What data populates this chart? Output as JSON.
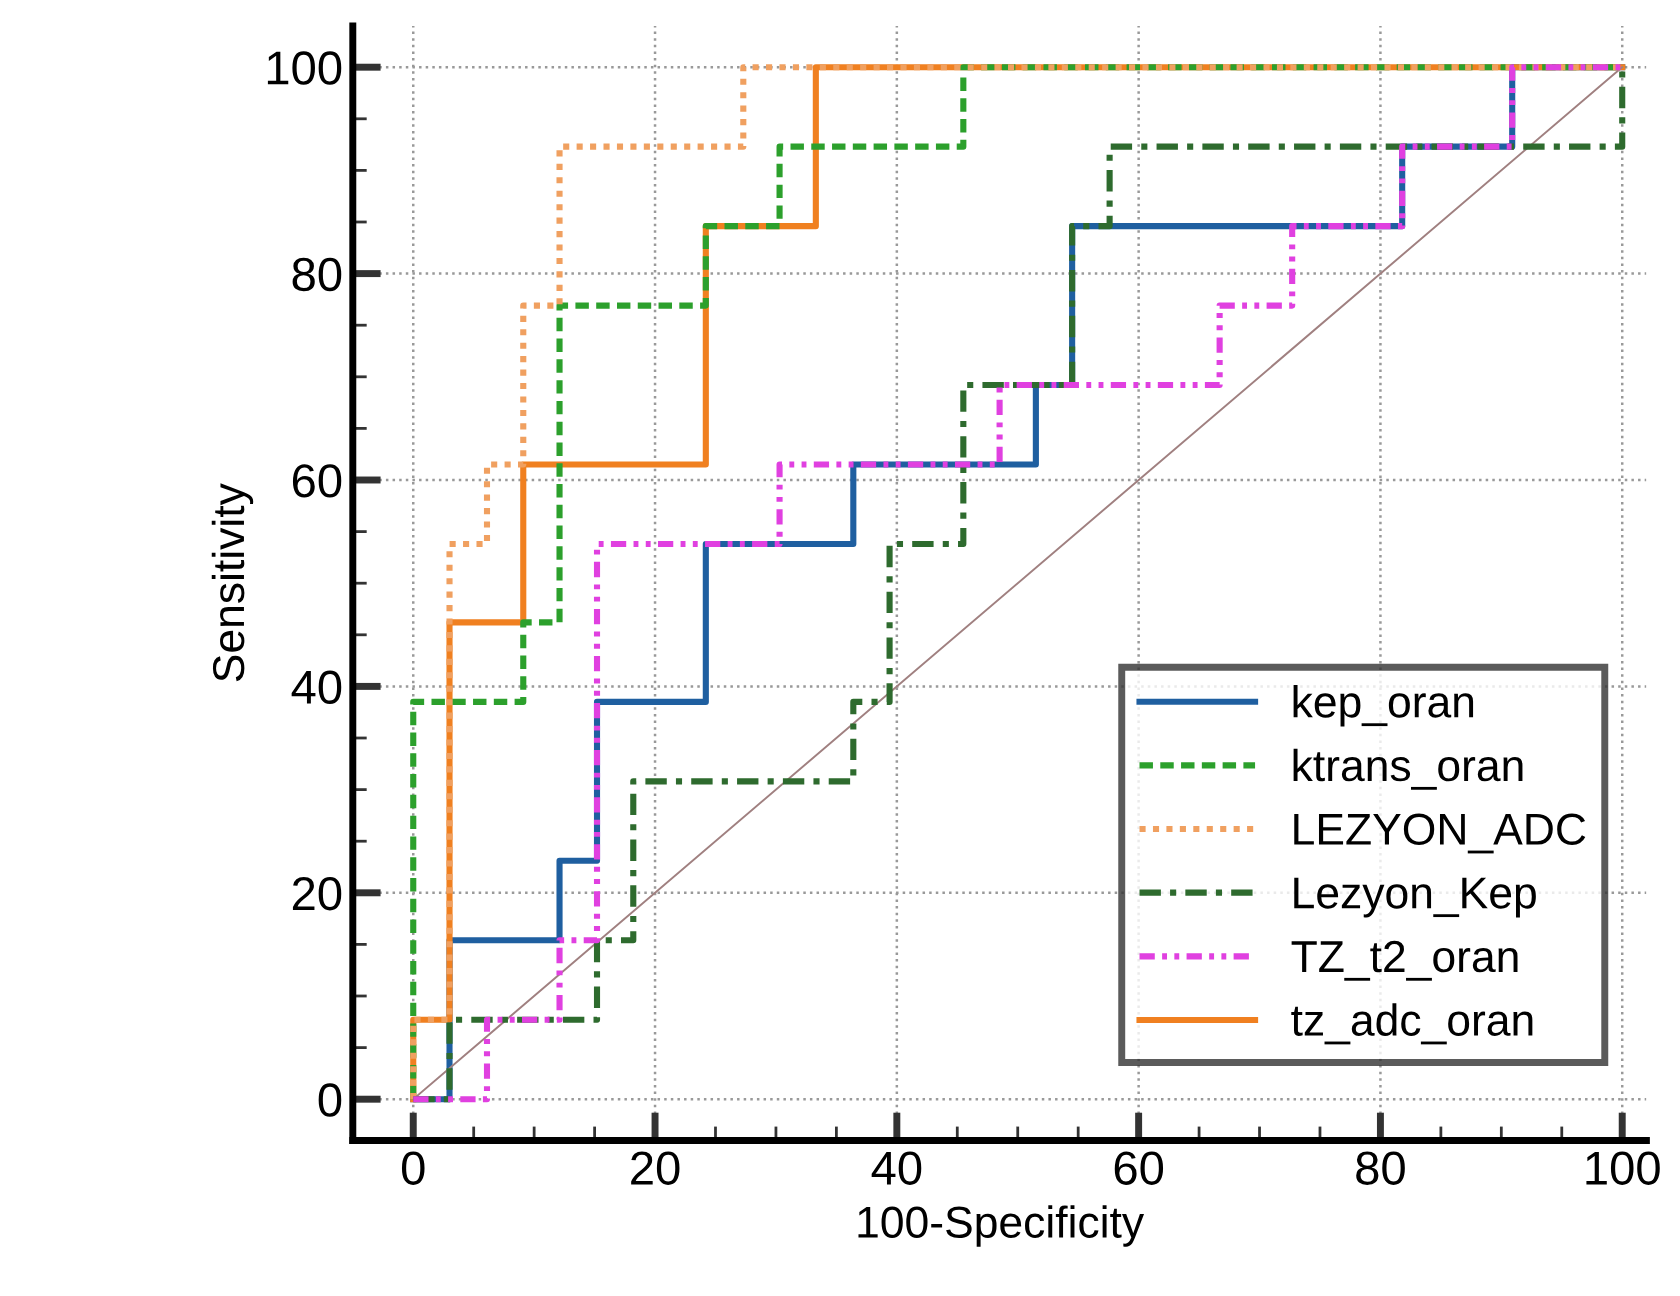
{
  "chart_data": {
    "type": "line",
    "xlabel": "100-Specificity",
    "ylabel": "Sensitivity",
    "xlim": [
      -5,
      102
    ],
    "ylim": [
      -4,
      104
    ],
    "xticks": [
      0,
      20,
      40,
      60,
      80,
      100
    ],
    "yticks": [
      0,
      20,
      40,
      60,
      80,
      100
    ],
    "grid": true,
    "legend": "bottom right",
    "series": [
      {
        "name": "kep_oran",
        "color": "#1f5fa0",
        "line_style": "solid",
        "x": [
          0,
          3,
          3,
          12.1,
          12.1,
          15.2,
          15.2,
          24.2,
          24.2,
          36.4,
          36.4,
          51.5,
          51.5,
          54.5,
          54.5,
          81.8,
          81.8,
          90.9,
          90.9,
          100
        ],
        "values": [
          0,
          0,
          15.4,
          15.4,
          23.1,
          23.1,
          38.5,
          38.5,
          53.8,
          53.8,
          61.5,
          61.5,
          69.2,
          69.2,
          84.6,
          84.6,
          92.3,
          92.3,
          100,
          100
        ]
      },
      {
        "name": "ktrans_oran",
        "color": "#2ca02c",
        "line_style": "dashed",
        "x": [
          0,
          0,
          9.1,
          9.1,
          12.1,
          12.1,
          24.2,
          24.2,
          30.3,
          30.3,
          45.5,
          45.5,
          100
        ],
        "values": [
          0,
          38.5,
          38.5,
          46.2,
          46.2,
          76.9,
          76.9,
          84.6,
          84.6,
          92.3,
          92.3,
          100,
          100
        ]
      },
      {
        "name": "LEZYON_ADC",
        "color": "#f0a060",
        "line_style": "dotted",
        "x": [
          0,
          0,
          3,
          3,
          6.1,
          6.1,
          9.1,
          9.1,
          12.1,
          12.1,
          27.3,
          27.3,
          100
        ],
        "values": [
          0,
          7.7,
          7.7,
          53.8,
          53.8,
          61.5,
          61.5,
          76.9,
          76.9,
          92.3,
          92.3,
          100,
          100
        ]
      },
      {
        "name": "Lezyon_Kep",
        "color": "#2e6b2e",
        "line_style": "dashdot",
        "x": [
          0,
          3,
          3,
          15.2,
          15.2,
          18.2,
          18.2,
          36.4,
          36.4,
          39.4,
          39.4,
          45.5,
          45.5,
          54.5,
          54.5,
          57.6,
          57.6,
          100,
          100
        ],
        "values": [
          0,
          0,
          7.7,
          7.7,
          15.4,
          15.4,
          30.8,
          30.8,
          38.5,
          38.5,
          53.8,
          53.8,
          69.2,
          69.2,
          84.6,
          84.6,
          92.3,
          92.3,
          100
        ]
      },
      {
        "name": "TZ_t2_oran",
        "color": "#e040e0",
        "line_style": "dashdotdot",
        "x": [
          0,
          6.1,
          6.1,
          12.1,
          12.1,
          15.2,
          15.2,
          30.3,
          30.3,
          48.5,
          48.5,
          66.7,
          66.7,
          72.7,
          72.7,
          81.8,
          81.8,
          90.9,
          90.9,
          100
        ],
        "values": [
          0,
          0,
          7.7,
          7.7,
          15.4,
          15.4,
          53.8,
          53.8,
          61.5,
          61.5,
          69.2,
          69.2,
          76.9,
          76.9,
          84.6,
          84.6,
          92.3,
          92.3,
          100,
          100
        ]
      },
      {
        "name": "tz_adc_oran",
        "color": "#f08020",
        "line_style": "solid",
        "x": [
          0,
          0,
          3,
          3,
          9.1,
          9.1,
          24.2,
          24.2,
          33.3,
          33.3,
          100
        ],
        "values": [
          0,
          7.7,
          7.7,
          46.2,
          46.2,
          61.5,
          61.5,
          84.6,
          84.6,
          100,
          100
        ]
      },
      {
        "color": "#a08080",
        "line_style": "solid",
        "x": [
          0,
          100
        ],
        "values": [
          0,
          100
        ]
      }
    ]
  }
}
